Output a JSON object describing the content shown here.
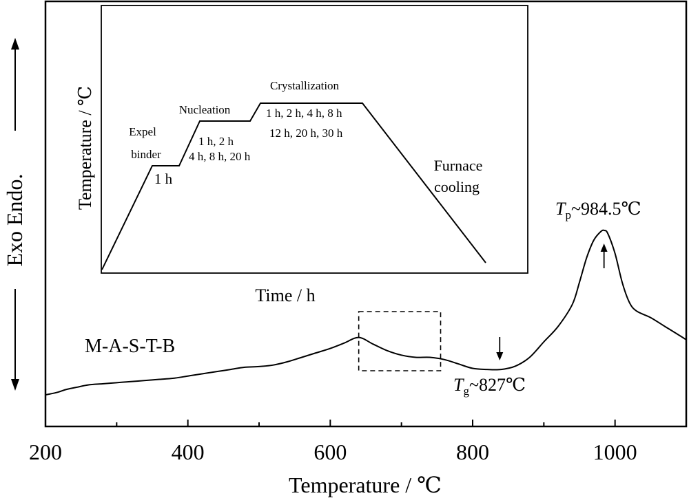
{
  "chart_data": [
    {
      "type": "line",
      "title": "",
      "xlabel": "Temperature / ℃",
      "ylabel": "Exo Endo.",
      "xlim": [
        200,
        1100
      ],
      "xticks": [
        200,
        400,
        600,
        800,
        1000
      ],
      "grid": false,
      "series": [
        {
          "name": "M-A-S-T-B",
          "x": [
            200,
            215,
            230,
            245,
            260,
            280,
            300,
            320,
            340,
            360,
            380,
            400,
            420,
            440,
            460,
            480,
            500,
            520,
            540,
            560,
            580,
            600,
            620,
            640,
            660,
            680,
            700,
            720,
            740,
            760,
            780,
            800,
            820,
            840,
            860,
            880,
            900,
            920,
            940,
            950,
            960,
            970,
            980,
            985,
            990,
            1000,
            1010,
            1020,
            1030,
            1050,
            1070,
            1090,
            1100
          ],
          "y": [
            0.04,
            0.05,
            0.065,
            0.075,
            0.085,
            0.09,
            0.095,
            0.1,
            0.105,
            0.11,
            0.115,
            0.125,
            0.135,
            0.145,
            0.155,
            0.165,
            0.168,
            0.175,
            0.19,
            0.21,
            0.23,
            0.25,
            0.275,
            0.3,
            0.27,
            0.24,
            0.22,
            0.21,
            0.21,
            0.2,
            0.18,
            0.16,
            0.155,
            0.155,
            0.17,
            0.21,
            0.28,
            0.35,
            0.45,
            0.55,
            0.66,
            0.74,
            0.78,
            0.785,
            0.77,
            0.68,
            0.55,
            0.46,
            0.42,
            0.39,
            0.35,
            0.31,
            0.29
          ]
        }
      ],
      "annotations": {
        "sample_label": "M-A-S-T-B",
        "tg_symbol": "T",
        "tg_sub": "g",
        "tg_value": "~827℃",
        "tg_x": 838,
        "tp_symbol": "T",
        "tp_sub": "p",
        "tp_value": "~984.5℃",
        "tp_x": 984.5,
        "highlight_box_x": [
          640,
          755
        ]
      }
    },
    {
      "type": "line",
      "title": "",
      "xlabel": "Time / h",
      "ylabel": "Temperature / ℃",
      "stages": [
        {
          "name": "Expel binder",
          "lines": [
            "Expel",
            "binder"
          ],
          "duration": "1 h"
        },
        {
          "name": "Nucleation",
          "lines": [
            "Nucleation"
          ],
          "durations": [
            "1 h, 2 h",
            "4 h, 8 h, 20 h"
          ]
        },
        {
          "name": "Crystallization",
          "lines": [
            "Crystallization"
          ],
          "durations": [
            "1 h, 2 h, 4 h, 8 h",
            "12 h, 20 h, 30 h"
          ]
        },
        {
          "name": "Furnace cooling",
          "lines": [
            "Furnace",
            "cooling"
          ]
        }
      ]
    }
  ]
}
